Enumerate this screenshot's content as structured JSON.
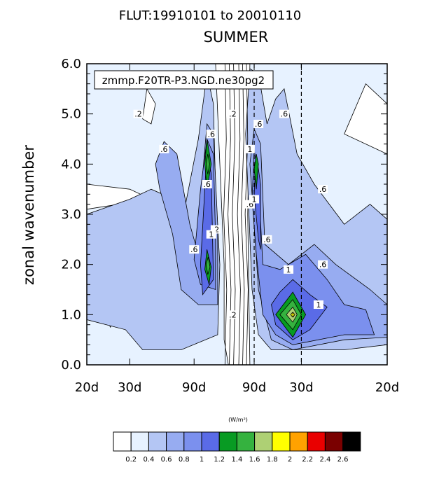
{
  "chart_data": {
    "type": "contour",
    "title_line1": "FLUT:19910101 to 20010110",
    "title_line2": "SUMMER",
    "case_label": "zmmp.F20TR-P3.NGD.ne30pg2",
    "ylabel": "zonal wavenumber",
    "ylim": [
      0,
      6
    ],
    "y_ticks": [
      "0.0",
      "1.0",
      "2.0",
      "3.0",
      "4.0",
      "5.0",
      "6.0"
    ],
    "x_tick_labels": [
      "20d",
      "30d",
      "90d",
      "90d",
      "30d",
      "20d"
    ],
    "units_label": "(W/m²)",
    "colorbar_labels": [
      "0.2",
      "0.4",
      "0.6",
      "0.8",
      "1",
      "1.2",
      "1.4",
      "1.6",
      "1.8",
      "2",
      "2.2",
      "2.4",
      "2.6"
    ],
    "colorbar_colors": [
      "#ffffff",
      "#e7f2ff",
      "#b4c6f4",
      "#97acf1",
      "#7b90ee",
      "#5a6be7",
      "#089b23",
      "#35b23f",
      "#aed074",
      "#ffff00",
      "#ffa200",
      "#e90000",
      "#7a0000",
      "#000000"
    ],
    "contour_labels": [
      {
        "text": ".2",
        "x": -0.23,
        "y": 5.0
      },
      {
        "text": ".2",
        "x": -0.01,
        "y": 5.0
      },
      {
        "text": ".2",
        "x": -0.05,
        "y": 2.7
      },
      {
        "text": ".2",
        "x": -0.01,
        "y": 1.0
      },
      {
        "text": ".6",
        "x": -0.17,
        "y": 4.3
      },
      {
        "text": ".6",
        "x": -0.06,
        "y": 4.6
      },
      {
        "text": ".6",
        "x": -0.07,
        "y": 3.6
      },
      {
        "text": ".6",
        "x": -0.1,
        "y": 2.3
      },
      {
        "text": ".6",
        "x": 0.03,
        "y": 3.2
      },
      {
        "text": ".6",
        "x": 0.05,
        "y": 4.8
      },
      {
        "text": ".6",
        "x": 0.07,
        "y": 2.5
      },
      {
        "text": ".6",
        "x": 0.11,
        "y": 5.0
      },
      {
        "text": ".6",
        "x": 0.2,
        "y": 3.5
      },
      {
        "text": ".6",
        "x": 0.2,
        "y": 2.0
      },
      {
        "text": "1",
        "x": 0.03,
        "y": 4.3
      },
      {
        "text": "1",
        "x": 0.04,
        "y": 3.3
      },
      {
        "text": "1",
        "x": -0.06,
        "y": 2.6
      },
      {
        "text": "1",
        "x": 0.12,
        "y": 1.9
      },
      {
        "text": "1",
        "x": 0.19,
        "y": 1.2
      }
    ],
    "maxima": [
      {
        "text": "1.4",
        "x": 0.13,
        "y": 1.0
      }
    ]
  }
}
